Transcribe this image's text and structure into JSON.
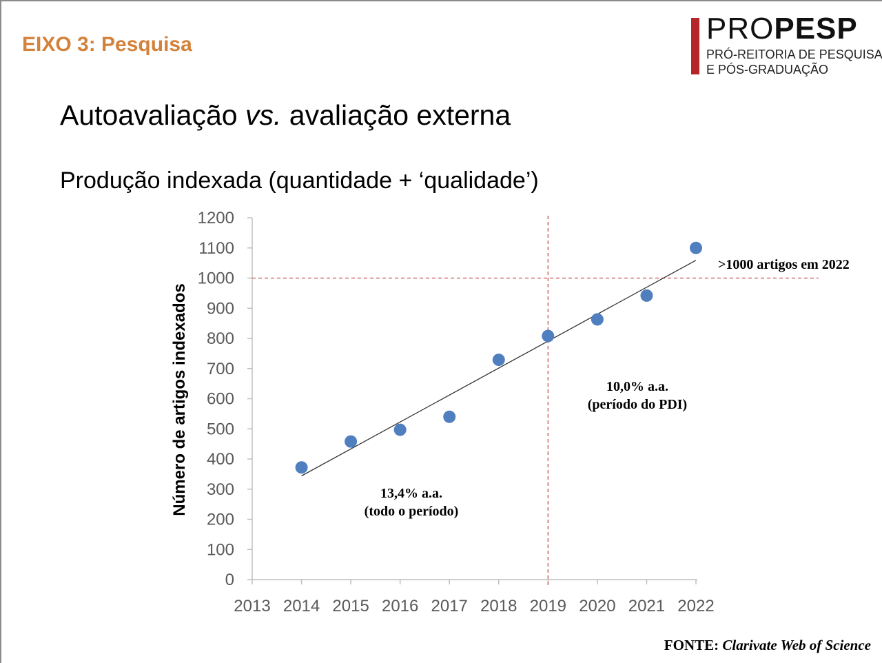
{
  "header": {
    "section": "EIXO 3: Pesquisa",
    "logo": {
      "name_part1": "PRO",
      "name_part2": "PESP",
      "line1": "PRÓ-REITORIA DE PESQUISA",
      "line2": "E PÓS-GRADUAÇÃO"
    }
  },
  "title": {
    "part1": "Autoavaliação ",
    "italic": "vs.",
    "part2": " avaliação externa"
  },
  "subtitle": "Produção indexada (quantidade + ‘qualidade’)",
  "chart_data": {
    "type": "scatter",
    "title": "",
    "xlabel": "",
    "ylabel": "Número de artigos indexados",
    "xlim": [
      2013,
      2022
    ],
    "ylim": [
      0,
      1200
    ],
    "x_ticks": [
      "2013",
      "2014",
      "2015",
      "2016",
      "2017",
      "2018",
      "2019",
      "2020",
      "2021",
      "2022"
    ],
    "y_ticks": [
      "0",
      "100",
      "200",
      "300",
      "400",
      "500",
      "600",
      "700",
      "800",
      "900",
      "1000",
      "1100",
      "1200"
    ],
    "series": [
      {
        "x": [
          2014,
          2015,
          2016,
          2017,
          2018,
          2019,
          2020,
          2021,
          2022
        ],
        "y": [
          372,
          458,
          497,
          540,
          729,
          808,
          863,
          942,
          1100
        ],
        "color": "#4f7fbf"
      }
    ],
    "trendline": {
      "x": [
        2014,
        2022
      ],
      "y": [
        344,
        1059
      ],
      "color": "#333333"
    },
    "reference_lines": [
      {
        "axis": "y",
        "value": 1000,
        "color": "#c0504d",
        "style": "dashed"
      },
      {
        "axis": "x",
        "value": 2019,
        "color": "#c0504d",
        "style": "dashed"
      }
    ],
    "annotations": [
      {
        "lines": [
          "13,4% a.a.",
          "(todo o período)"
        ]
      },
      {
        "lines": [
          "10,0% a.a.",
          "(período do PDI)"
        ]
      },
      {
        "lines": [
          ">1000 artigos em 2022"
        ]
      }
    ],
    "grid": false
  },
  "source": {
    "label": "FONTE: ",
    "text": "Clarivate Web of Science"
  }
}
